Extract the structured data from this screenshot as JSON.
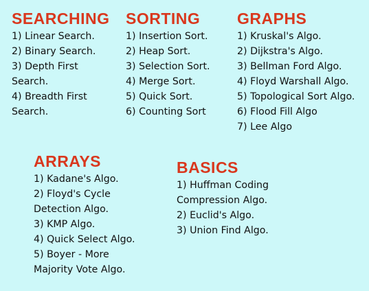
{
  "sections": {
    "searching": {
      "title": "SEARCHING",
      "lines": [
        "1) Linear Search.",
        "2) Binary Search.",
        "3) Depth First",
        "Search.",
        "4) Breadth First",
        "Search."
      ]
    },
    "sorting": {
      "title": "SORTING",
      "lines": [
        "1) Insertion Sort.",
        "2) Heap Sort.",
        "3) Selection Sort.",
        "4) Merge Sort.",
        "5) Quick Sort.",
        "6) Counting Sort"
      ]
    },
    "graphs": {
      "title": "GRAPHS",
      "lines": [
        "1) Kruskal's Algo.",
        "2) Dijkstra's Algo.",
        "3) Bellman Ford Algo.",
        "4) Floyd Warshall Algo.",
        "5) Topological Sort Algo.",
        "6) Flood Fill Algo",
        "7) Lee Algo"
      ]
    },
    "arrays": {
      "title": "ARRAYS",
      "lines": [
        "1) Kadane's Algo.",
        "2) Floyd's Cycle",
        "Detection Algo.",
        "3) KMP Algo.",
        "4) Quick Select Algo.",
        "5) Boyer - More",
        "Majority Vote Algo."
      ]
    },
    "basics": {
      "title": "BASICS",
      "lines": [
        "1) Huffman Coding",
        "Compression Algo.",
        "2) Euclid's Algo.",
        "3) Union Find Algo."
      ]
    }
  },
  "colors": {
    "background": "#cdf8f9",
    "heading": "#d9381e",
    "text": "#111111"
  }
}
